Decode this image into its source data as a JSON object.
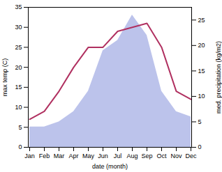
{
  "chart_data": {
    "type": "line",
    "xlabel": "date (month)",
    "ylabel": "max temp (C)",
    "y2label": "med. precipitation (kg/m2)",
    "categories": [
      "Jan",
      "Feb",
      "Mar",
      "Apr",
      "May",
      "Jun",
      "Jul",
      "Aug",
      "Sep",
      "Oct",
      "Nov",
      "Dec"
    ],
    "series": [
      {
        "type": "area",
        "axis": "y2",
        "color": "#b0b8e8",
        "values": [
          4,
          4,
          5,
          7,
          11,
          19,
          21,
          26,
          22,
          11,
          7,
          6
        ]
      },
      {
        "type": "line",
        "color": "#b03060",
        "values": [
          7,
          9,
          14,
          20,
          25,
          25,
          29,
          30,
          31,
          25,
          14,
          12
        ]
      }
    ],
    "ylim": [
      0,
      35
    ],
    "yticks": [
      0,
      5,
      10,
      15,
      20,
      25,
      30,
      35
    ],
    "y2lim": [
      0,
      27.5
    ],
    "y2ticks": [
      0,
      5,
      10,
      15,
      20,
      25
    ]
  }
}
